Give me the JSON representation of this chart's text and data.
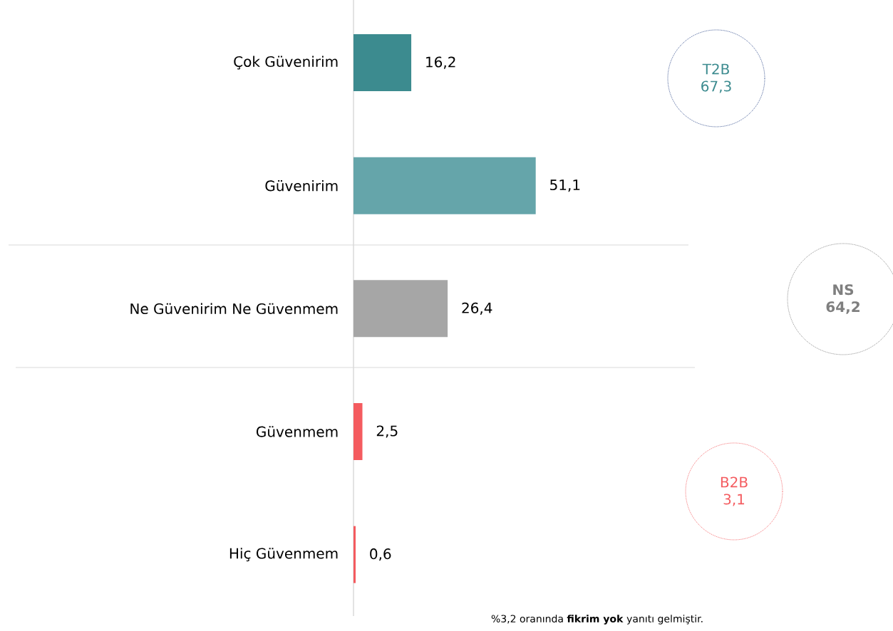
{
  "chart_data": {
    "type": "bar",
    "orientation": "horizontal",
    "categories": [
      "Çok Güvenirim",
      "Güvenirim",
      "Ne Güvenirim Ne Güvenmem",
      "Güvenmem",
      "Hiç Güvenmem"
    ],
    "values": [
      16.2,
      51.1,
      26.4,
      2.5,
      0.6
    ],
    "value_labels": [
      "16,2",
      "51,1",
      "26,4",
      "2,5",
      "0,6"
    ],
    "colors": [
      "#3c8b8f",
      "#65a5aa",
      "#a6a6a6",
      "#f45b5f",
      "#f45b5f"
    ],
    "annotations": [
      "T2B 67,3",
      "NS 64,2",
      "B2B 3,1",
      "%3,2 oranında **fikrim yok** yanıtı gelmiştir."
    ]
  }
}
